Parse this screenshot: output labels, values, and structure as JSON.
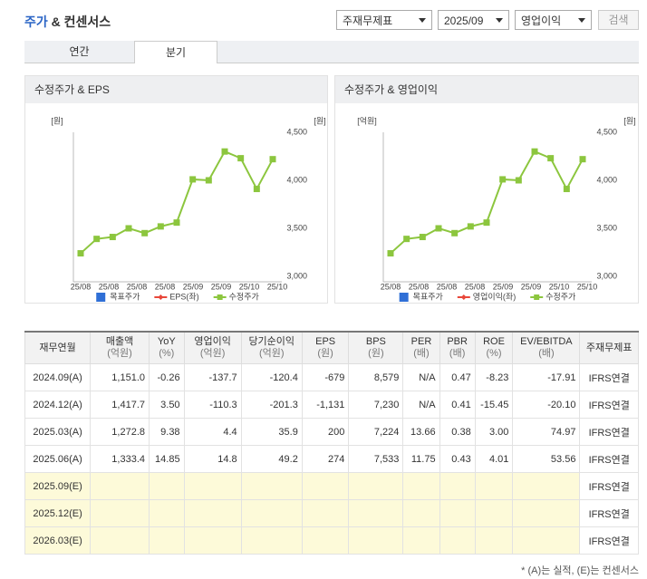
{
  "header": {
    "title_accent": "주가",
    "title": "& 컨센서스",
    "selects": [
      "주재무제표",
      "2025/09",
      "영업이익"
    ],
    "button": "검색"
  },
  "tabs": [
    "연간",
    "분기"
  ],
  "chart_data": [
    {
      "type": "line",
      "title": "수정주가 & EPS",
      "y_label": "[원]",
      "y2_label": "[원]",
      "xticks": [
        "25/08",
        "25/08",
        "25/08",
        "25/08",
        "25/09",
        "25/09",
        "25/10",
        "25/10"
      ],
      "y2lim": [
        3000,
        4500
      ],
      "y2ticks": [
        {
          "value": 3000,
          "label": "3,000"
        },
        {
          "value": 3500,
          "label": "3,500"
        },
        {
          "value": 4000,
          "label": "4,000"
        },
        {
          "value": 4500,
          "label": "4,500"
        }
      ],
      "series": [
        {
          "name": "목표주가",
          "color": "#2f6fd6",
          "marker": "square",
          "line": false,
          "values": [
            null,
            null,
            null,
            null,
            null,
            null,
            null,
            null,
            null,
            null,
            null,
            null,
            null
          ]
        },
        {
          "name": "EPS(좌)",
          "color": "#e8473a",
          "marker": "diamond",
          "line": true,
          "values": [
            null,
            null,
            null,
            null,
            null,
            null,
            null,
            null,
            null,
            null,
            null,
            null,
            null
          ]
        },
        {
          "name": "수정주가",
          "color": "#8cc63e",
          "marker": "square",
          "line": true,
          "axis": "y2",
          "values": [
            3240,
            3390,
            3410,
            3500,
            3450,
            3520,
            3560,
            4010,
            4000,
            4300,
            4230,
            3910,
            4220
          ]
        }
      ]
    },
    {
      "type": "line",
      "title": "수정주가 & 영업이익",
      "y_label": "[억원]",
      "y2_label": "[원]",
      "xticks": [
        "25/08",
        "25/08",
        "25/08",
        "25/08",
        "25/09",
        "25/09",
        "25/10",
        "25/10"
      ],
      "y2lim": [
        3000,
        4500
      ],
      "y2ticks": [
        {
          "value": 3000,
          "label": "3,000"
        },
        {
          "value": 3500,
          "label": "3,500"
        },
        {
          "value": 4000,
          "label": "4,000"
        },
        {
          "value": 4500,
          "label": "4,500"
        }
      ],
      "series": [
        {
          "name": "목표주가",
          "color": "#2f6fd6",
          "marker": "square",
          "line": false,
          "values": [
            null,
            null,
            null,
            null,
            null,
            null,
            null,
            null,
            null,
            null,
            null,
            null,
            null
          ]
        },
        {
          "name": "영업이익(좌)",
          "color": "#e8473a",
          "marker": "diamond",
          "line": true,
          "values": [
            null,
            null,
            null,
            null,
            null,
            null,
            null,
            null,
            null,
            null,
            null,
            null,
            null
          ]
        },
        {
          "name": "수정주가",
          "color": "#8cc63e",
          "marker": "square",
          "line": true,
          "axis": "y2",
          "values": [
            3240,
            3390,
            3410,
            3500,
            3450,
            3520,
            3560,
            4010,
            4000,
            4300,
            4230,
            3910,
            4220
          ]
        }
      ]
    }
  ],
  "table": {
    "headers": [
      {
        "label": "재무연월"
      },
      {
        "label": "매출액",
        "unit": "(억원)"
      },
      {
        "label": "YoY",
        "unit": "(%)"
      },
      {
        "label": "영업이익",
        "unit": "(억원)"
      },
      {
        "label": "당기순이익",
        "unit": "(억원)"
      },
      {
        "label": "EPS",
        "unit": "(원)"
      },
      {
        "label": "BPS",
        "unit": "(원)"
      },
      {
        "label": "PER",
        "unit": "(배)"
      },
      {
        "label": "PBR",
        "unit": "(배)"
      },
      {
        "label": "ROE",
        "unit": "(%)"
      },
      {
        "label": "EV/EBITDA",
        "unit": "(배)"
      },
      {
        "label": "주재무제표"
      }
    ],
    "rows": [
      [
        "2024.09(A)",
        "1,151.0",
        "-0.26",
        "-137.7",
        "-120.4",
        "-679",
        "8,579",
        "N/A",
        "0.47",
        "-8.23",
        "-17.91",
        "IFRS연결"
      ],
      [
        "2024.12(A)",
        "1,417.7",
        "3.50",
        "-110.3",
        "-201.3",
        "-1,131",
        "7,230",
        "N/A",
        "0.41",
        "-15.45",
        "-20.10",
        "IFRS연결"
      ],
      [
        "2025.03(A)",
        "1,272.8",
        "9.38",
        "4.4",
        "35.9",
        "200",
        "7,224",
        "13.66",
        "0.38",
        "3.00",
        "74.97",
        "IFRS연결"
      ],
      [
        "2025.06(A)",
        "1,333.4",
        "14.85",
        "14.8",
        "49.2",
        "274",
        "7,533",
        "11.75",
        "0.43",
        "4.01",
        "53.56",
        "IFRS연결"
      ],
      [
        "2025.09(E)",
        null,
        null,
        null,
        null,
        null,
        null,
        null,
        null,
        null,
        null,
        "IFRS연결"
      ],
      [
        "2025.12(E)",
        null,
        null,
        null,
        null,
        null,
        null,
        null,
        null,
        null,
        null,
        "IFRS연결"
      ],
      [
        "2026.03(E)",
        null,
        null,
        null,
        null,
        null,
        null,
        null,
        null,
        null,
        null,
        "IFRS연결"
      ]
    ]
  },
  "footnote": "* (A)는 실적, (E)는 컨센서스"
}
